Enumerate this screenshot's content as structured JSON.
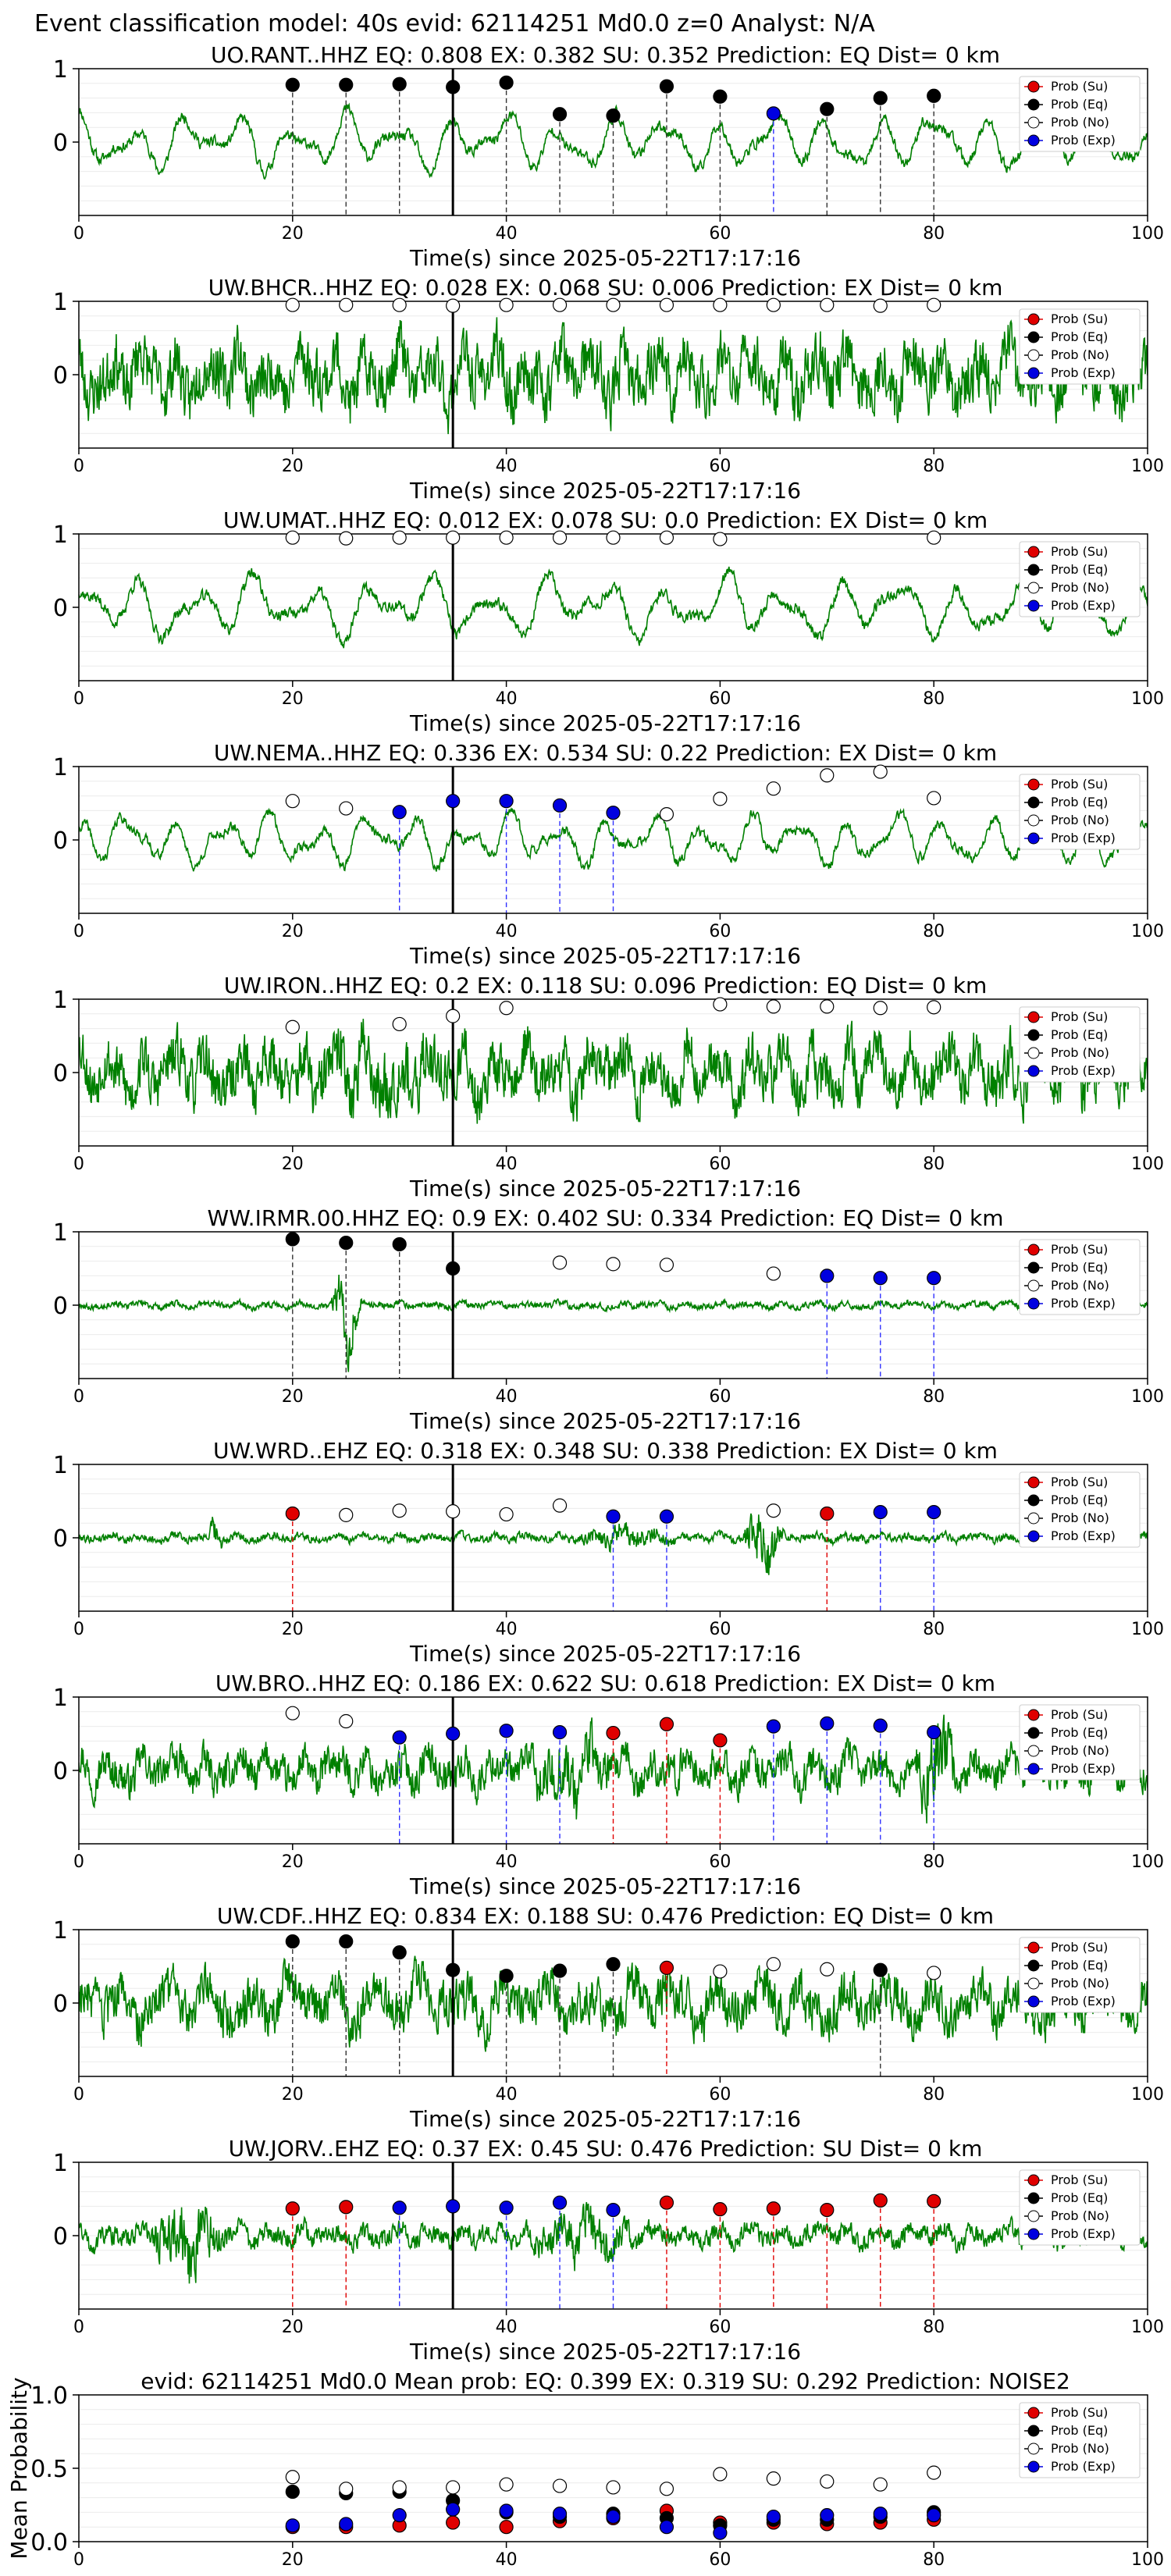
{
  "suptitle": "Event classification model: 40s evid: 62114251 Md0.0 z=0 Analyst: N/A",
  "xlabel": "Time(s) since 2025-05-22T17:17:16",
  "legend": [
    "Prob (Su)",
    "Prob (Eq)",
    "Prob (No)",
    "Prob (Exp)"
  ],
  "colors": {
    "waveform": "#008000",
    "su": "#e00000",
    "eq": "#000000",
    "no": "#ffffff",
    "exp": "#0000e0",
    "marker_line": "#000000"
  },
  "chart_data": [
    {
      "type": "line",
      "station": "UO.RANT..HHZ",
      "title": "UO.RANT..HHZ   EQ: 0.808  EX: 0.382  SU: 0.352   Prediction: EQ    Dist= 0 km",
      "xlim": [
        0,
        100
      ],
      "ylim": [
        -1,
        1
      ],
      "xticks": [
        0,
        20,
        40,
        60,
        80,
        100
      ],
      "yticks": [
        1,
        0
      ],
      "waveform": {
        "seed": 11,
        "amplitude": 0.55,
        "style": "smooth",
        "period": 5,
        "bursts": []
      },
      "onset_time": 35,
      "predictions": [
        {
          "t": 20,
          "prob": 0.78,
          "class": "eq"
        },
        {
          "t": 25,
          "prob": 0.78,
          "class": "eq"
        },
        {
          "t": 30,
          "prob": 0.79,
          "class": "eq"
        },
        {
          "t": 35,
          "prob": 0.75,
          "class": "eq"
        },
        {
          "t": 40,
          "prob": 0.81,
          "class": "eq"
        },
        {
          "t": 45,
          "prob": 0.38,
          "class": "eq"
        },
        {
          "t": 50,
          "prob": 0.36,
          "class": "eq"
        },
        {
          "t": 55,
          "prob": 0.76,
          "class": "eq"
        },
        {
          "t": 60,
          "prob": 0.62,
          "class": "eq"
        },
        {
          "t": 65,
          "prob": 0.39,
          "class": "exp"
        },
        {
          "t": 70,
          "prob": 0.45,
          "class": "eq"
        },
        {
          "t": 75,
          "prob": 0.6,
          "class": "eq"
        },
        {
          "t": 80,
          "prob": 0.63,
          "class": "eq"
        }
      ]
    },
    {
      "type": "line",
      "station": "UW.BHCR..HHZ",
      "title": "UW.BHCR..HHZ   EQ: 0.028  EX: 0.068  SU: 0.006   Prediction: EX    Dist= 0 km",
      "xlim": [
        0,
        100
      ],
      "ylim": [
        -1,
        1
      ],
      "xticks": [
        0,
        20,
        40,
        60,
        80,
        100
      ],
      "yticks": [
        1,
        0
      ],
      "waveform": {
        "seed": 23,
        "amplitude": 0.75,
        "style": "noisy",
        "period": 3,
        "bursts": []
      },
      "onset_time": 35,
      "predictions": [
        {
          "t": 20,
          "prob": 0.95,
          "class": "no"
        },
        {
          "t": 25,
          "prob": 0.95,
          "class": "no"
        },
        {
          "t": 30,
          "prob": 0.95,
          "class": "no"
        },
        {
          "t": 35,
          "prob": 0.94,
          "class": "no"
        },
        {
          "t": 40,
          "prob": 0.95,
          "class": "no"
        },
        {
          "t": 45,
          "prob": 0.95,
          "class": "no"
        },
        {
          "t": 50,
          "prob": 0.95,
          "class": "no"
        },
        {
          "t": 55,
          "prob": 0.95,
          "class": "no"
        },
        {
          "t": 60,
          "prob": 0.95,
          "class": "no"
        },
        {
          "t": 65,
          "prob": 0.95,
          "class": "no"
        },
        {
          "t": 70,
          "prob": 0.95,
          "class": "no"
        },
        {
          "t": 75,
          "prob": 0.94,
          "class": "no"
        },
        {
          "t": 80,
          "prob": 0.95,
          "class": "no"
        }
      ]
    },
    {
      "type": "line",
      "station": "UW.UMAT..HHZ",
      "title": "UW.UMAT..HHZ   EQ: 0.012  EX: 0.078  SU: 0.0   Prediction: EX    Dist= 0 km",
      "xlim": [
        0,
        100
      ],
      "ylim": [
        -1,
        1
      ],
      "xticks": [
        0,
        20,
        40,
        60,
        80,
        100
      ],
      "yticks": [
        1,
        0
      ],
      "waveform": {
        "seed": 37,
        "amplitude": 0.6,
        "style": "smooth",
        "period": 5.5,
        "bursts": []
      },
      "onset_time": 35,
      "predictions": [
        {
          "t": 20,
          "prob": 0.95,
          "class": "no"
        },
        {
          "t": 25,
          "prob": 0.94,
          "class": "no"
        },
        {
          "t": 30,
          "prob": 0.95,
          "class": "no"
        },
        {
          "t": 35,
          "prob": 0.95,
          "class": "no"
        },
        {
          "t": 40,
          "prob": 0.95,
          "class": "no"
        },
        {
          "t": 45,
          "prob": 0.95,
          "class": "no"
        },
        {
          "t": 50,
          "prob": 0.95,
          "class": "no"
        },
        {
          "t": 55,
          "prob": 0.95,
          "class": "no"
        },
        {
          "t": 60,
          "prob": 0.93,
          "class": "no"
        },
        {
          "t": 80,
          "prob": 0.95,
          "class": "no"
        }
      ]
    },
    {
      "type": "line",
      "station": "UW.NEMA..HHZ",
      "title": "UW.NEMA..HHZ   EQ: 0.336  EX: 0.534  SU: 0.22   Prediction: EX    Dist= 0 km",
      "xlim": [
        0,
        100
      ],
      "ylim": [
        -1,
        1
      ],
      "xticks": [
        0,
        20,
        40,
        60,
        80,
        100
      ],
      "yticks": [
        1,
        0
      ],
      "waveform": {
        "seed": 41,
        "amplitude": 0.5,
        "style": "smooth",
        "period": 4.5,
        "bursts": []
      },
      "onset_time": 35,
      "predictions": [
        {
          "t": 20,
          "prob": 0.53,
          "class": "no"
        },
        {
          "t": 25,
          "prob": 0.43,
          "class": "no"
        },
        {
          "t": 30,
          "prob": 0.38,
          "class": "exp"
        },
        {
          "t": 35,
          "prob": 0.53,
          "class": "exp"
        },
        {
          "t": 40,
          "prob": 0.53,
          "class": "exp"
        },
        {
          "t": 45,
          "prob": 0.47,
          "class": "exp"
        },
        {
          "t": 50,
          "prob": 0.37,
          "class": "exp"
        },
        {
          "t": 55,
          "prob": 0.35,
          "class": "no"
        },
        {
          "t": 60,
          "prob": 0.56,
          "class": "no"
        },
        {
          "t": 65,
          "prob": 0.7,
          "class": "no"
        },
        {
          "t": 70,
          "prob": 0.88,
          "class": "no"
        },
        {
          "t": 75,
          "prob": 0.93,
          "class": "no"
        },
        {
          "t": 80,
          "prob": 0.57,
          "class": "no"
        }
      ]
    },
    {
      "type": "line",
      "station": "UW.IRON..HHZ",
      "title": "UW.IRON..HHZ   EQ: 0.2  EX: 0.118  SU: 0.096   Prediction: EQ    Dist= 0 km",
      "xlim": [
        0,
        100
      ],
      "ylim": [
        -1,
        1
      ],
      "xticks": [
        0,
        20,
        40,
        60,
        80,
        100
      ],
      "yticks": [
        1,
        0
      ],
      "waveform": {
        "seed": 53,
        "amplitude": 0.7,
        "style": "noisy",
        "period": 3,
        "bursts": [
          [
            20,
            36,
            1.3
          ]
        ]
      },
      "onset_time": 35,
      "predictions": [
        {
          "t": 20,
          "prob": 0.62,
          "class": "no"
        },
        {
          "t": 30,
          "prob": 0.66,
          "class": "no"
        },
        {
          "t": 35,
          "prob": 0.77,
          "class": "no"
        },
        {
          "t": 40,
          "prob": 0.88,
          "class": "no"
        },
        {
          "t": 60,
          "prob": 0.93,
          "class": "no"
        },
        {
          "t": 65,
          "prob": 0.9,
          "class": "no"
        },
        {
          "t": 70,
          "prob": 0.9,
          "class": "no"
        },
        {
          "t": 75,
          "prob": 0.88,
          "class": "no"
        },
        {
          "t": 80,
          "prob": 0.89,
          "class": "no"
        }
      ]
    },
    {
      "type": "line",
      "station": "WW.IRMR.00.HHZ",
      "title": "WW.IRMR.00.HHZ   EQ: 0.9  EX: 0.402  SU: 0.334   Prediction: EQ    Dist= 0 km",
      "xlim": [
        0,
        100
      ],
      "ylim": [
        -1,
        1
      ],
      "xticks": [
        0,
        20,
        40,
        60,
        80,
        100
      ],
      "yticks": [
        1,
        0
      ],
      "waveform": {
        "seed": 67,
        "amplitude": 0.08,
        "style": "noisy",
        "period": 3,
        "bursts": [
          [
            23.5,
            26.5,
            10
          ]
        ]
      },
      "onset_time": 35,
      "predictions": [
        {
          "t": 20,
          "prob": 0.9,
          "class": "eq"
        },
        {
          "t": 25,
          "prob": 0.85,
          "class": "eq"
        },
        {
          "t": 30,
          "prob": 0.83,
          "class": "eq"
        },
        {
          "t": 35,
          "prob": 0.5,
          "class": "eq"
        },
        {
          "t": 45,
          "prob": 0.58,
          "class": "no"
        },
        {
          "t": 50,
          "prob": 0.56,
          "class": "no"
        },
        {
          "t": 55,
          "prob": 0.55,
          "class": "no"
        },
        {
          "t": 65,
          "prob": 0.43,
          "class": "no"
        },
        {
          "t": 70,
          "prob": 0.4,
          "class": "exp"
        },
        {
          "t": 75,
          "prob": 0.37,
          "class": "exp"
        },
        {
          "t": 80,
          "prob": 0.37,
          "class": "exp"
        }
      ]
    },
    {
      "type": "line",
      "station": "UW.WRD..EHZ",
      "title": "UW.WRD..EHZ   EQ: 0.318  EX: 0.348  SU: 0.338   Prediction: EX    Dist= 0 km",
      "xlim": [
        0,
        100
      ],
      "ylim": [
        -1,
        1
      ],
      "xticks": [
        0,
        20,
        40,
        60,
        80,
        100
      ],
      "yticks": [
        1,
        0
      ],
      "waveform": {
        "seed": 79,
        "amplitude": 0.1,
        "style": "noisy",
        "period": 3,
        "bursts": [
          [
            12,
            13.5,
            4
          ],
          [
            46,
            56,
            2.6
          ],
          [
            62,
            66,
            7
          ]
        ]
      },
      "onset_time": 35,
      "predictions": [
        {
          "t": 20,
          "prob": 0.33,
          "class": "su"
        },
        {
          "t": 25,
          "prob": 0.31,
          "class": "no"
        },
        {
          "t": 30,
          "prob": 0.37,
          "class": "no"
        },
        {
          "t": 35,
          "prob": 0.36,
          "class": "no"
        },
        {
          "t": 40,
          "prob": 0.32,
          "class": "no"
        },
        {
          "t": 45,
          "prob": 0.44,
          "class": "no"
        },
        {
          "t": 50,
          "prob": 0.29,
          "class": "exp"
        },
        {
          "t": 55,
          "prob": 0.29,
          "class": "exp"
        },
        {
          "t": 65,
          "prob": 0.37,
          "class": "no"
        },
        {
          "t": 70,
          "prob": 0.33,
          "class": "su"
        },
        {
          "t": 75,
          "prob": 0.35,
          "class": "exp"
        },
        {
          "t": 80,
          "prob": 0.35,
          "class": "exp"
        }
      ]
    },
    {
      "type": "line",
      "station": "UW.BRO..HHZ",
      "title": "UW.BRO..HHZ   EQ: 0.186  EX: 0.622  SU: 0.618   Prediction: EX    Dist= 0 km",
      "xlim": [
        0,
        100
      ],
      "ylim": [
        -1,
        1
      ],
      "xticks": [
        0,
        20,
        40,
        60,
        80,
        100
      ],
      "yticks": [
        1,
        0
      ],
      "waveform": {
        "seed": 97,
        "amplitude": 0.45,
        "style": "noisy",
        "period": 3,
        "bursts": [
          [
            42,
            50,
            1.8
          ],
          [
            78,
            82,
            2.3
          ]
        ]
      },
      "onset_time": 35,
      "predictions": [
        {
          "t": 20,
          "prob": 0.78,
          "class": "no"
        },
        {
          "t": 25,
          "prob": 0.67,
          "class": "no"
        },
        {
          "t": 30,
          "prob": 0.45,
          "class": "exp"
        },
        {
          "t": 35,
          "prob": 0.5,
          "class": "exp"
        },
        {
          "t": 40,
          "prob": 0.54,
          "class": "exp"
        },
        {
          "t": 45,
          "prob": 0.52,
          "class": "exp"
        },
        {
          "t": 50,
          "prob": 0.51,
          "class": "su"
        },
        {
          "t": 55,
          "prob": 0.63,
          "class": "su"
        },
        {
          "t": 60,
          "prob": 0.41,
          "class": "su"
        },
        {
          "t": 65,
          "prob": 0.6,
          "class": "exp"
        },
        {
          "t": 70,
          "prob": 0.64,
          "class": "exp"
        },
        {
          "t": 75,
          "prob": 0.61,
          "class": "exp"
        },
        {
          "t": 80,
          "prob": 0.52,
          "class": "exp"
        }
      ]
    },
    {
      "type": "line",
      "station": "UW.CDF..HHZ",
      "title": "UW.CDF..HHZ   EQ: 0.834  EX: 0.188  SU: 0.476   Prediction: EQ    Dist= 0 km",
      "xlim": [
        0,
        100
      ],
      "ylim": [
        -1,
        1
      ],
      "xticks": [
        0,
        20,
        40,
        60,
        80,
        100
      ],
      "yticks": [
        1,
        0
      ],
      "waveform": {
        "seed": 103,
        "amplitude": 0.6,
        "style": "noisy",
        "period": 4,
        "bursts": []
      },
      "onset_time": 35,
      "predictions": [
        {
          "t": 20,
          "prob": 0.84,
          "class": "eq"
        },
        {
          "t": 25,
          "prob": 0.84,
          "class": "eq"
        },
        {
          "t": 30,
          "prob": 0.69,
          "class": "eq"
        },
        {
          "t": 35,
          "prob": 0.45,
          "class": "eq"
        },
        {
          "t": 40,
          "prob": 0.37,
          "class": "eq"
        },
        {
          "t": 45,
          "prob": 0.44,
          "class": "eq"
        },
        {
          "t": 50,
          "prob": 0.53,
          "class": "eq"
        },
        {
          "t": 55,
          "prob": 0.48,
          "class": "su"
        },
        {
          "t": 60,
          "prob": 0.43,
          "class": "no"
        },
        {
          "t": 65,
          "prob": 0.53,
          "class": "no"
        },
        {
          "t": 70,
          "prob": 0.46,
          "class": "no"
        },
        {
          "t": 75,
          "prob": 0.45,
          "class": "eq"
        },
        {
          "t": 80,
          "prob": 0.41,
          "class": "no"
        }
      ]
    },
    {
      "type": "line",
      "station": "UW.JORV..EHZ",
      "title": "UW.JORV..EHZ   EQ: 0.37  EX: 0.45  SU: 0.476   Prediction: SU    Dist= 0 km",
      "xlim": [
        0,
        100
      ],
      "ylim": [
        -1,
        1
      ],
      "xticks": [
        0,
        20,
        40,
        60,
        80,
        100
      ],
      "yticks": [
        1,
        0
      ],
      "waveform": {
        "seed": 131,
        "amplitude": 0.25,
        "style": "noisy",
        "period": 3,
        "bursts": [
          [
            6,
            14,
            3.2
          ],
          [
            42,
            52,
            2.3
          ]
        ]
      },
      "onset_time": 35,
      "predictions": [
        {
          "t": 20,
          "prob": 0.37,
          "class": "su"
        },
        {
          "t": 25,
          "prob": 0.39,
          "class": "su"
        },
        {
          "t": 30,
          "prob": 0.38,
          "class": "exp"
        },
        {
          "t": 35,
          "prob": 0.4,
          "class": "exp"
        },
        {
          "t": 40,
          "prob": 0.38,
          "class": "exp"
        },
        {
          "t": 45,
          "prob": 0.45,
          "class": "exp"
        },
        {
          "t": 50,
          "prob": 0.35,
          "class": "exp"
        },
        {
          "t": 55,
          "prob": 0.45,
          "class": "su"
        },
        {
          "t": 60,
          "prob": 0.36,
          "class": "su"
        },
        {
          "t": 65,
          "prob": 0.37,
          "class": "su"
        },
        {
          "t": 70,
          "prob": 0.35,
          "class": "su"
        },
        {
          "t": 75,
          "prob": 0.48,
          "class": "su"
        },
        {
          "t": 80,
          "prob": 0.47,
          "class": "su"
        }
      ]
    },
    {
      "type": "scatter",
      "title": "evid: 62114251  Md0.0  Mean prob:   EQ: 0.399  EX: 0.319  SU: 0.292   Prediction: NOISE2",
      "ylabel": "Mean Probability",
      "xlim": [
        0,
        100
      ],
      "ylim": [
        0,
        1
      ],
      "xticks": [
        0,
        20,
        40,
        60,
        80,
        100
      ],
      "yticks": [
        1.0,
        0.5,
        0.0
      ],
      "ytick_labels": [
        "1.0",
        "0.5",
        "0.0"
      ],
      "t": [
        20,
        25,
        30,
        35,
        40,
        45,
        50,
        55,
        60,
        65,
        70,
        75,
        80
      ],
      "series": [
        {
          "class": "su",
          "values": [
            0.1,
            0.1,
            0.11,
            0.13,
            0.1,
            0.14,
            0.16,
            0.21,
            0.13,
            0.13,
            0.12,
            0.13,
            0.15
          ]
        },
        {
          "class": "eq",
          "values": [
            0.34,
            0.33,
            0.34,
            0.28,
            0.2,
            0.17,
            0.19,
            0.16,
            0.11,
            0.15,
            0.15,
            0.17,
            0.2
          ]
        },
        {
          "class": "no",
          "values": [
            0.44,
            0.36,
            0.37,
            0.37,
            0.39,
            0.38,
            0.37,
            0.36,
            0.46,
            0.43,
            0.41,
            0.39,
            0.47
          ]
        },
        {
          "class": "exp",
          "values": [
            0.11,
            0.12,
            0.18,
            0.22,
            0.21,
            0.19,
            0.17,
            0.1,
            0.06,
            0.17,
            0.18,
            0.19,
            0.18
          ]
        }
      ]
    }
  ]
}
